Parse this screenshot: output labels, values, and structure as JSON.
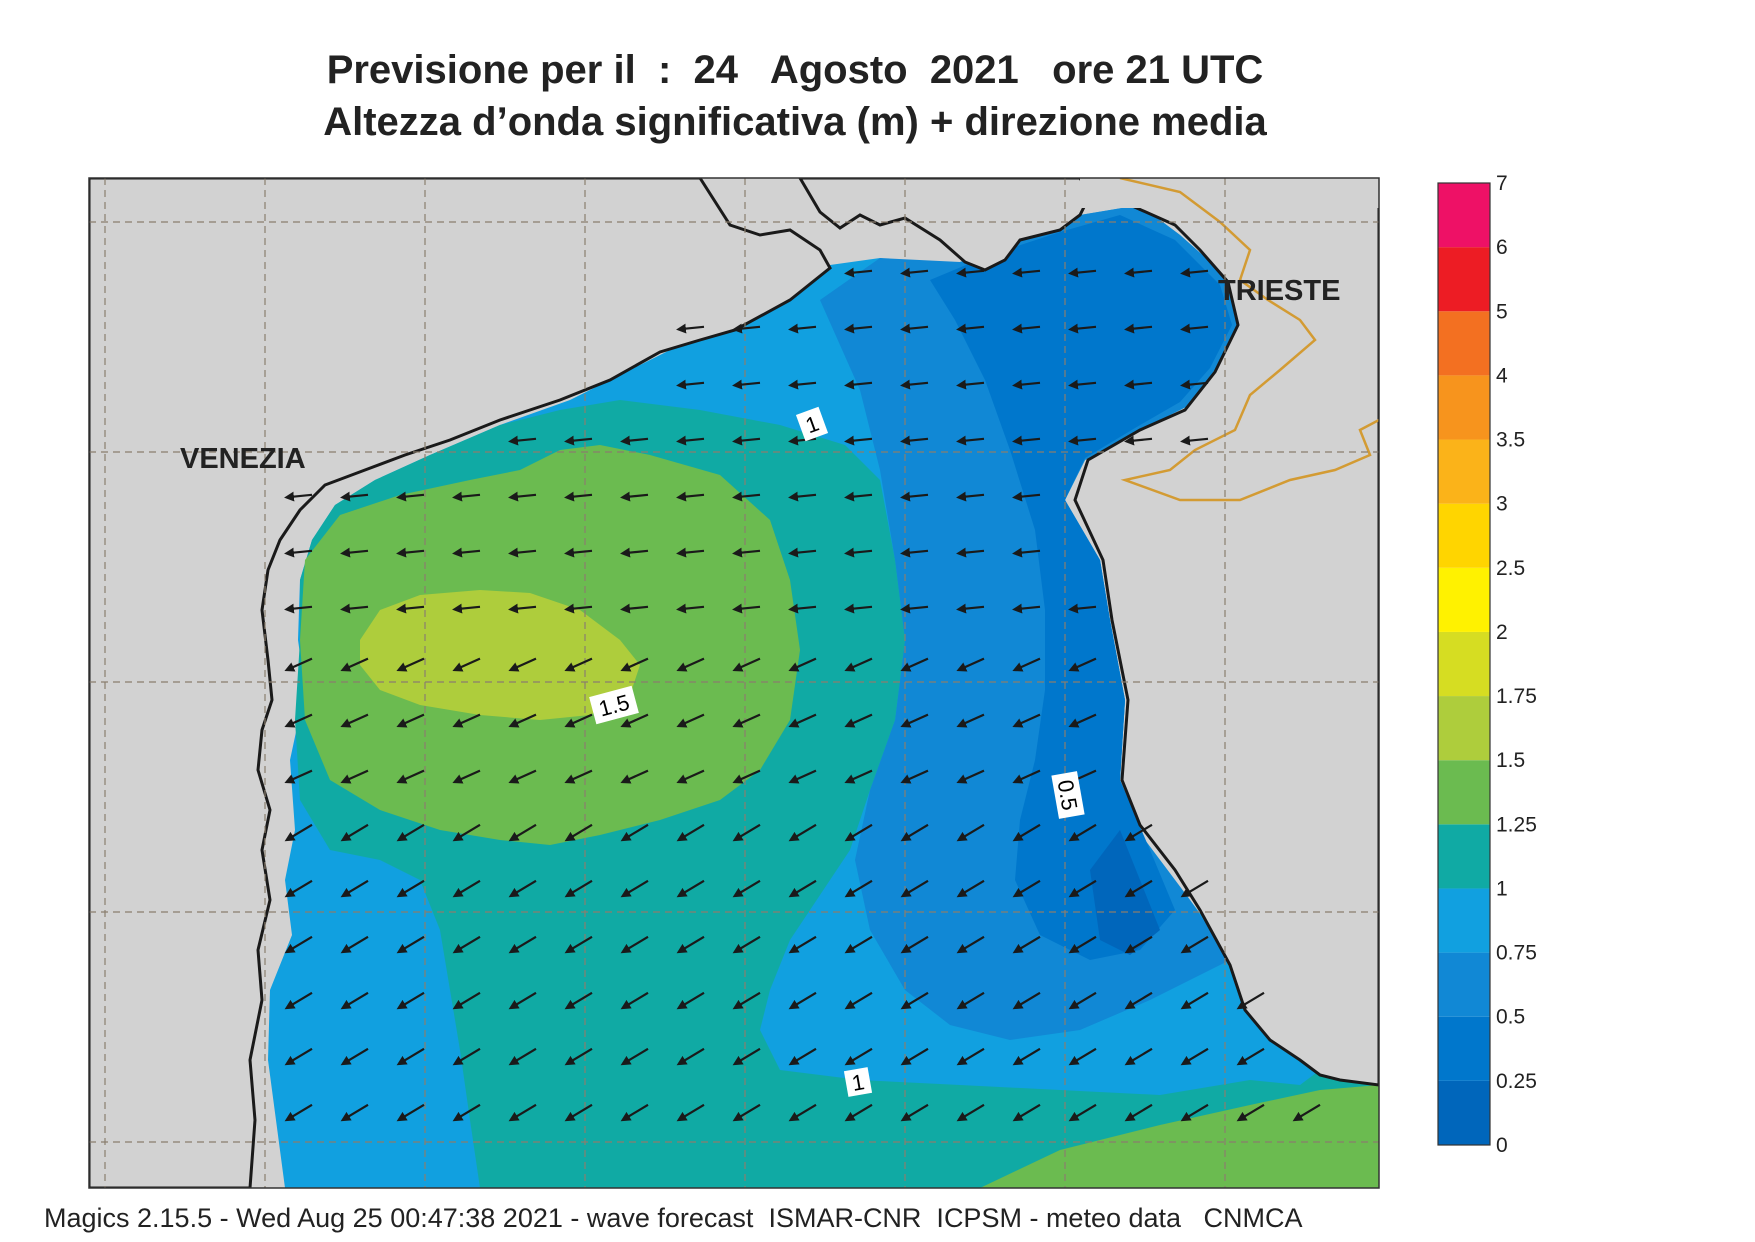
{
  "title": {
    "line1": "Previsione per il  :  24   Agosto  2021   ore 21 UTC",
    "line2": "Altezza d’onda significativa (m) + direzione media"
  },
  "map": {
    "cities": [
      {
        "name": "VENEZIA"
      },
      {
        "name": "TRIESTE"
      }
    ],
    "contour_labels": [
      "1",
      "1.5",
      "0.5",
      "1"
    ],
    "arrow_direction": "south-west (pointing to lower-left)",
    "colors": {
      "land": "#d2d2d2",
      "sea_0_25": "#0066bb",
      "sea_25_50": "#0077cc",
      "sea_50_75": "#1188d5",
      "sea_75_1": "#11a0e0",
      "sea_1_125": "#10aaa4",
      "sea_125_15": "#6bbb50",
      "sea_15_175": "#aecd3c",
      "sea_175_2": "#d6dd22",
      "border": "#d39b33",
      "coast": "#1a1a1a"
    }
  },
  "legend": {
    "levels": [
      "0",
      "0.25",
      "0.5",
      "0.75",
      "1",
      "1.25",
      "1.5",
      "1.75",
      "2",
      "2.5",
      "3",
      "3.5",
      "4",
      "5",
      "6",
      "7"
    ],
    "colors": [
      "#0066bb",
      "#0077cc",
      "#1188d5",
      "#11a0e0",
      "#10aaa4",
      "#6bbb50",
      "#aecd3c",
      "#d6dd22",
      "#fff200",
      "#ffd500",
      "#fbb319",
      "#f7941d",
      "#f37021",
      "#ed1c24",
      "#ee1166"
    ]
  },
  "footer": "Magics 2.15.5 - Wed Aug 25 00:47:38 2021 - wave forecast  ISMAR-CNR  ICPSM - meteo data   CNMCA"
}
